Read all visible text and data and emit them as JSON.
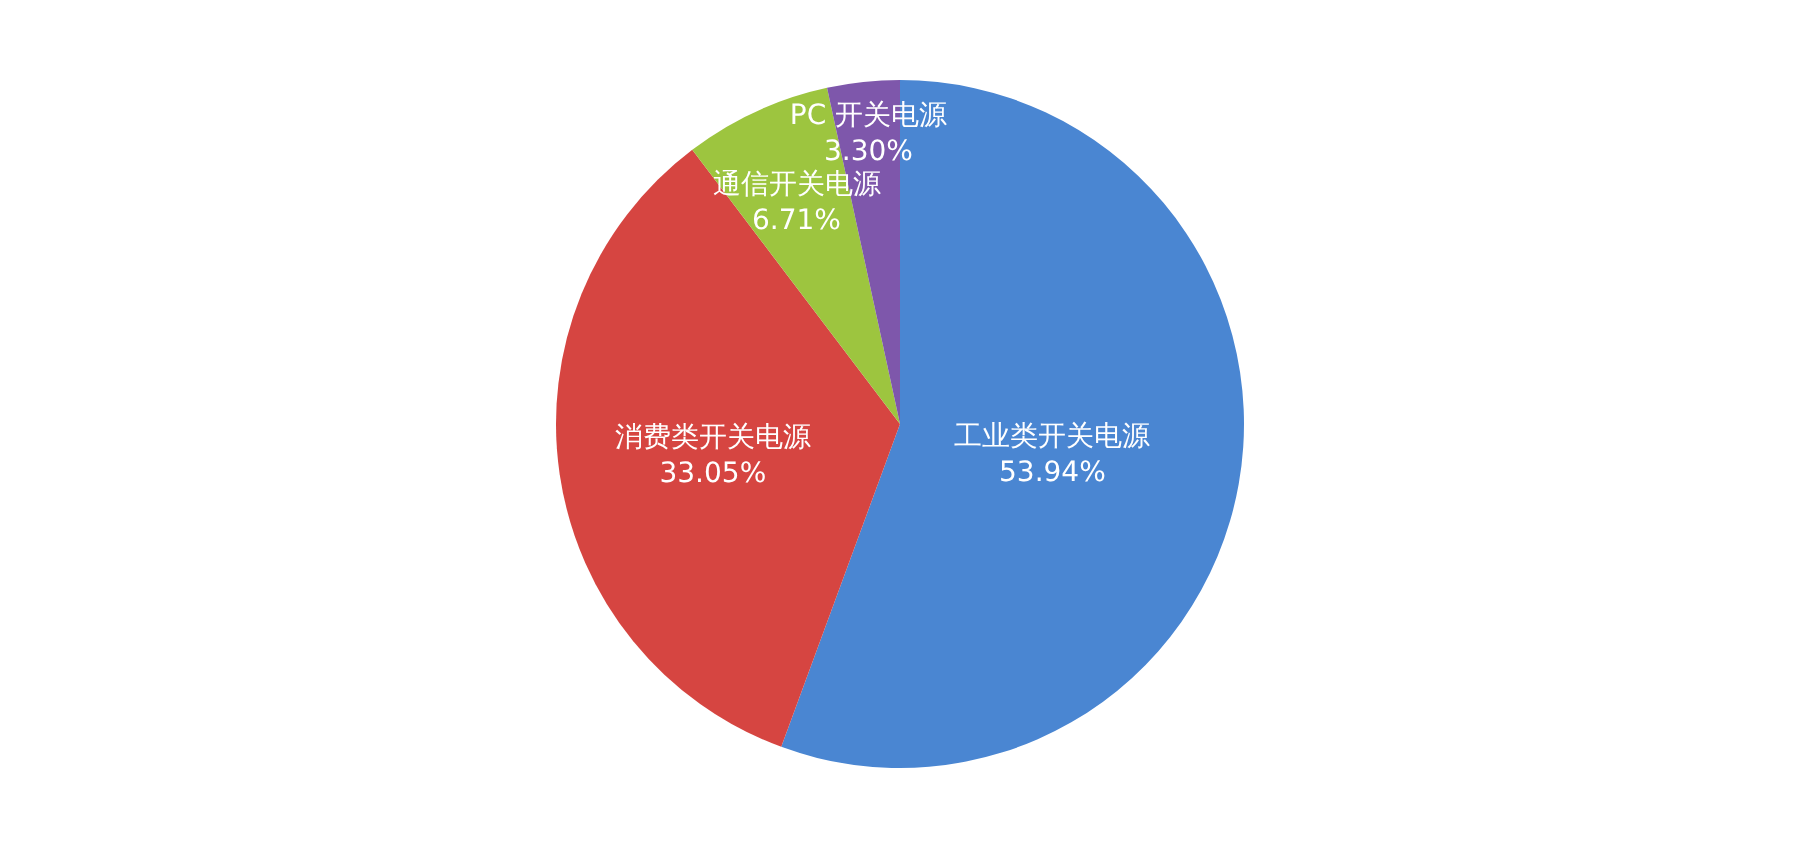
{
  "chart_data": {
    "type": "pie",
    "categories": [
      "工业类开关电源",
      "消费类开关电源",
      "通信开关电源",
      "PC 开关电源"
    ],
    "values": [
      53.94,
      33.05,
      6.71,
      3.3
    ],
    "colors": [
      "#4a86d2",
      "#d64541",
      "#9dc53f",
      "#7e57ab"
    ],
    "value_labels": [
      "53.94%",
      "33.05%",
      "6.71%",
      "3.30%"
    ]
  }
}
